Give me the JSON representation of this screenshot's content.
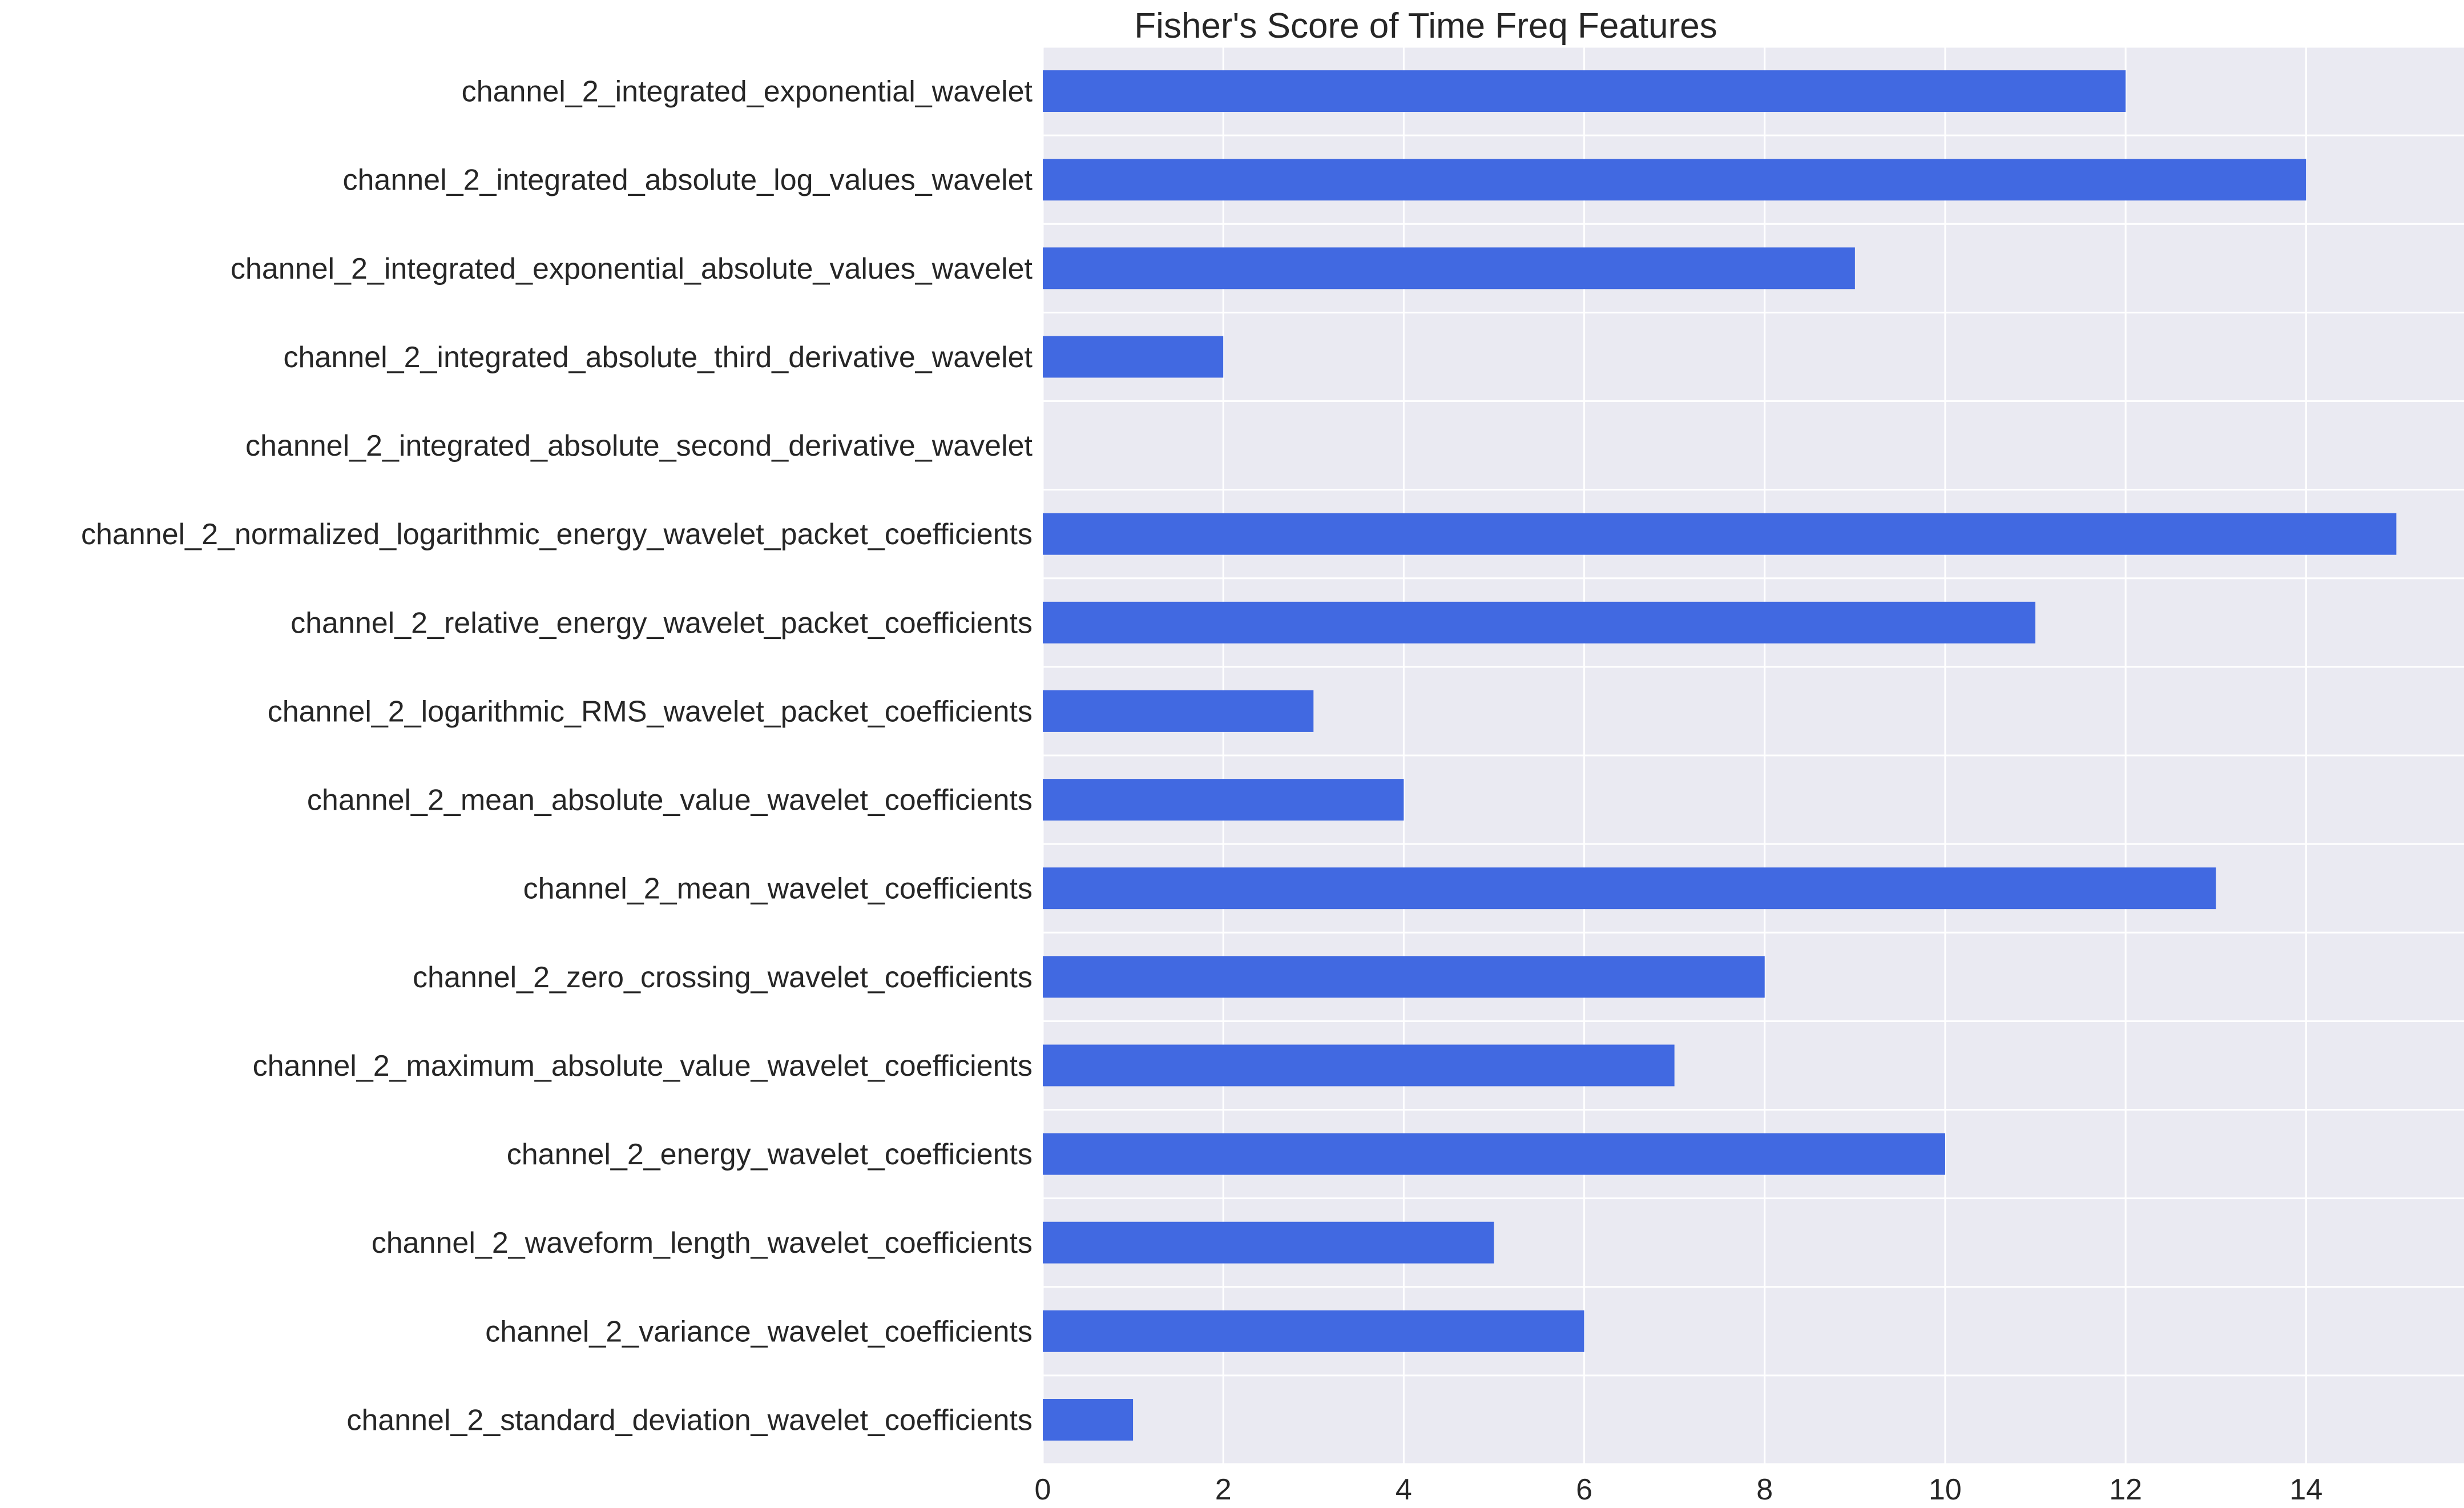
{
  "chart_data": {
    "type": "bar",
    "orientation": "horizontal",
    "title": "Fisher's Score of Time Freq Features",
    "xlabel": "",
    "ylabel": "",
    "xlim": [
      0,
      15.75
    ],
    "xticks": [
      0,
      2,
      4,
      6,
      8,
      10,
      12,
      14
    ],
    "grid": true,
    "bar_color": "#4169E1",
    "background_color": "#EAEAF2",
    "categories": [
      "channel_2_integrated_exponential_wavelet",
      "channel_2_integrated_absolute_log_values_wavelet",
      "channel_2_integrated_exponential_absolute_values_wavelet",
      "channel_2_integrated_absolute_third_derivative_wavelet",
      "channel_2_integrated_absolute_second_derivative_wavelet",
      "channel_2_normalized_logarithmic_energy_wavelet_packet_coefficients",
      "channel_2_relative_energy_wavelet_packet_coefficients",
      "channel_2_logarithmic_RMS_wavelet_packet_coefficients",
      "channel_2_mean_absolute_value_wavelet_coefficients",
      "channel_2_mean_wavelet_coefficients",
      "channel_2_zero_crossing_wavelet_coefficients",
      "channel_2_maximum_absolute_value_wavelet_coefficients",
      "channel_2_energy_wavelet_coefficients",
      "channel_2_waveform_length_wavelet_coefficients",
      "channel_2_variance_wavelet_coefficients",
      "channel_2_standard_deviation_wavelet_coefficients"
    ],
    "values": [
      12,
      14,
      9,
      2,
      0,
      15,
      11,
      3,
      4,
      13,
      8,
      7,
      10,
      5,
      6,
      1
    ]
  }
}
